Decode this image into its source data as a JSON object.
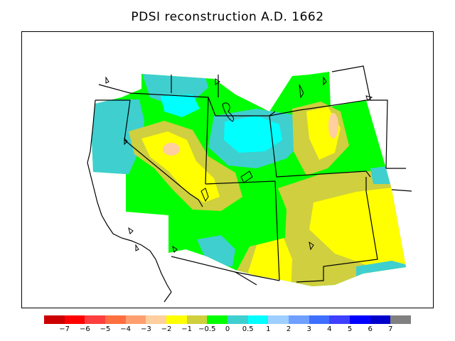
{
  "title": "PDSI reconstruction A.D. 1662",
  "legend": {
    "colors": [
      "#cc0000",
      "#ff0000",
      "#ff3f3f",
      "#ff6f3f",
      "#ff9f6f",
      "#ffcf9f",
      "#ffff00",
      "#cfcf3f",
      "#00ff00",
      "#3fcfcf",
      "#00ffff",
      "#9fcfff",
      "#6f9fff",
      "#3f6fff",
      "#3f3fff",
      "#0000ff",
      "#0000cc",
      "#808080"
    ],
    "ticks": [
      "−7",
      "−6",
      "−5",
      "−4",
      "−3",
      "−2",
      "−1",
      "−0.5",
      "0",
      "0.5",
      "1",
      "2",
      "3",
      "4",
      "5",
      "6",
      "7"
    ]
  },
  "colors": {
    "dry_strong": "#ffcf9f",
    "dry": "#ffff00",
    "dry_mild": "#cfcf3f",
    "neutral": "#00ff00",
    "wet_mild": "#3fcfcf",
    "wet": "#00ffff"
  }
}
